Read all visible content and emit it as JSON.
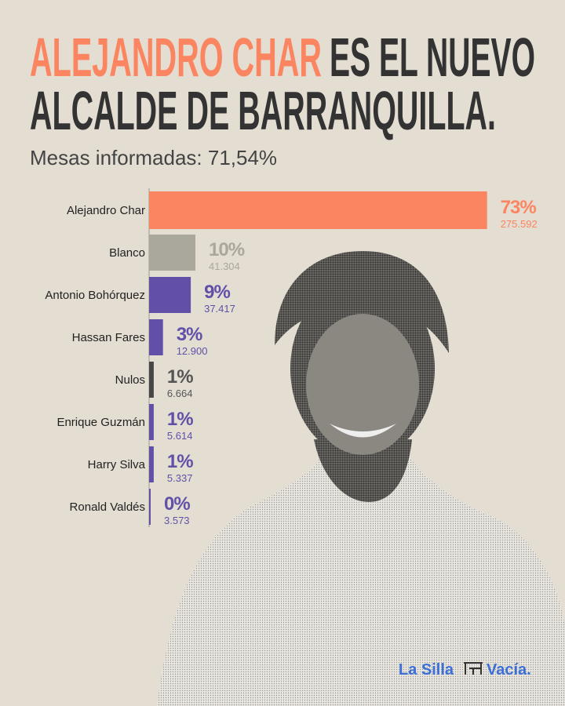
{
  "chart_data": {
    "type": "bar",
    "title": {
      "highlight": "ALEJANDRO CHAR",
      "line1": "ES EL NUEVO",
      "line2": "ALCALDE DE BARRANQUILLA."
    },
    "subtitle": "Mesas informadas: 71,54%",
    "categories": [
      "Alejandro Char",
      "Blanco",
      "Antonio Bohórquez",
      "Hassan Fares",
      "Nulos",
      "Enrique Guzmán",
      "Harry Silva",
      "Ronald Valdés"
    ],
    "values": [
      73,
      10,
      9,
      3,
      1,
      1,
      1,
      0
    ],
    "value_labels": [
      "73%",
      "10%",
      "9%",
      "3%",
      "1%",
      "1%",
      "1%",
      "0%"
    ],
    "colors": [
      "#fb8560",
      "#aaa79c",
      "#6250a8",
      "#6250a8",
      "#474747",
      "#6250a8",
      "#6250a8",
      "#6250a8"
    ],
    "label_colors": [
      "#fb8560",
      "#aaa79c",
      "#6250a8",
      "#6250a8",
      "#555555",
      "#6250a8",
      "#6250a8",
      "#6250a8"
    ],
    "votes": {
      "values": [
        275592,
        41304,
        37417,
        12900,
        6664,
        5614,
        5337,
        3573
      ],
      "value_labels": [
        "275.592",
        "41.304",
        "37.417",
        "12.900",
        "6.664",
        "5.614",
        "5.337",
        "3.573"
      ]
    },
    "logo": {
      "left": "La Silla",
      "right": "Vacía."
    }
  }
}
